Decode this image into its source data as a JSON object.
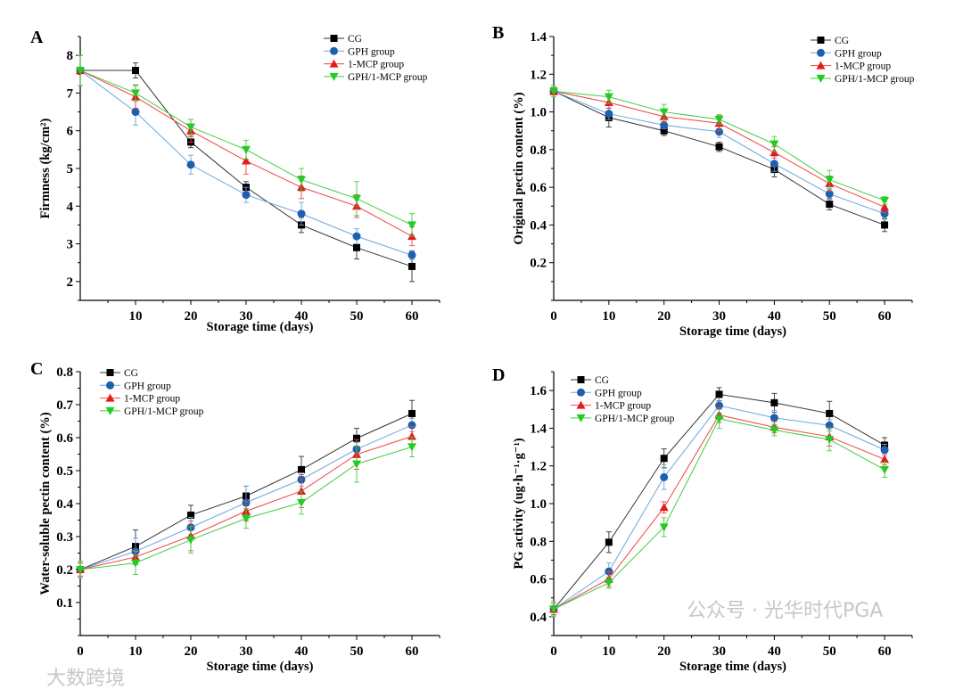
{
  "series_styles": [
    {
      "name": "CG",
      "marker": "square",
      "color": "#000000",
      "line": "#333333"
    },
    {
      "name": "GPH group",
      "marker": "circle",
      "color": "#1f5fb0",
      "line": "#6aa6de"
    },
    {
      "name": "1-MCP group",
      "marker": "triangle-up",
      "color": "#e8191b",
      "line": "#ee4444"
    },
    {
      "name": "GPH/1-MCP group",
      "marker": "triangle-down",
      "color": "#22cc22",
      "line": "#44cc44"
    }
  ],
  "chart_data": [
    {
      "panel": "A",
      "type": "line",
      "title": "",
      "xlabel": "Storage time (days)",
      "ylabel": "Firmness (kg/cm²)",
      "x": [
        0,
        10,
        20,
        30,
        40,
        50,
        60
      ],
      "xlim": [
        0,
        65
      ],
      "ylim": [
        1.5,
        8.5
      ],
      "xticks": [
        "10",
        "20",
        "30",
        "40",
        "50",
        "60"
      ],
      "yticks": [
        "2",
        "3",
        "4",
        "5",
        "6",
        "7",
        "8"
      ],
      "legend": "top-right",
      "grid": false,
      "series": [
        {
          "name": "CG",
          "values": [
            7.6,
            7.6,
            5.7,
            4.5,
            3.5,
            2.9,
            2.4
          ],
          "errors": [
            0.4,
            0.2,
            0.15,
            0.15,
            0.2,
            0.3,
            0.4
          ]
        },
        {
          "name": "GPH group",
          "values": [
            7.6,
            6.5,
            5.1,
            4.3,
            3.8,
            3.2,
            2.7
          ],
          "errors": [
            0.4,
            0.35,
            0.25,
            0.2,
            0.3,
            0.2,
            0.12
          ]
        },
        {
          "name": "1-MCP group",
          "values": [
            7.6,
            6.9,
            6.0,
            5.2,
            4.5,
            4.0,
            3.2
          ],
          "errors": [
            0.4,
            0.3,
            0.3,
            0.35,
            0.3,
            0.3,
            0.25
          ]
        },
        {
          "name": "GPH/1-MCP group",
          "values": [
            7.6,
            7.0,
            6.1,
            5.5,
            4.7,
            4.2,
            3.5
          ],
          "errors": [
            0.4,
            0.22,
            0.2,
            0.25,
            0.3,
            0.45,
            0.3
          ]
        }
      ]
    },
    {
      "panel": "B",
      "type": "line",
      "title": "",
      "xlabel": "Storage time (days)",
      "ylabel": "Original pectin content (%)",
      "x": [
        0,
        10,
        20,
        30,
        40,
        50,
        60
      ],
      "xlim": [
        0,
        65
      ],
      "ylim": [
        0,
        1.4
      ],
      "xticks": [
        "0",
        "10",
        "20",
        "30",
        "40",
        "50",
        "60"
      ],
      "yticks": [
        "0.2",
        "0.4",
        "0.6",
        "0.8",
        "1.0",
        "1.2",
        "1.4"
      ],
      "legend": "top-right",
      "grid": false,
      "series": [
        {
          "name": "CG",
          "values": [
            1.11,
            0.97,
            0.9,
            0.815,
            0.695,
            0.51,
            0.4
          ],
          "errors": [
            0.02,
            0.05,
            0.025,
            0.025,
            0.04,
            0.03,
            0.035
          ]
        },
        {
          "name": "GPH group",
          "values": [
            1.11,
            0.99,
            0.93,
            0.895,
            0.725,
            0.565,
            0.46
          ],
          "errors": [
            0.02,
            0.03,
            0.02,
            0.03,
            0.04,
            0.03,
            0.03
          ]
        },
        {
          "name": "1-MCP group",
          "values": [
            1.11,
            1.05,
            0.975,
            0.94,
            0.785,
            0.62,
            0.495
          ],
          "errors": [
            0.02,
            0.03,
            0.03,
            0.04,
            0.03,
            0.04,
            0.03
          ]
        },
        {
          "name": "GPH/1-MCP group",
          "values": [
            1.11,
            1.08,
            1.0,
            0.96,
            0.83,
            0.64,
            0.53
          ],
          "errors": [
            0.03,
            0.035,
            0.04,
            0.025,
            0.04,
            0.05,
            0.02
          ]
        }
      ]
    },
    {
      "panel": "C",
      "type": "line",
      "title": "",
      "xlabel": "Storage time (days)",
      "ylabel": "Water-soluble pectin content (%)",
      "x": [
        0,
        10,
        20,
        30,
        40,
        50,
        60
      ],
      "xlim": [
        0,
        65
      ],
      "ylim": [
        0,
        0.8
      ],
      "xticks": [
        "0",
        "10",
        "20",
        "30",
        "40",
        "50",
        "60"
      ],
      "yticks": [
        "0.1",
        "0.2",
        "0.3",
        "0.4",
        "0.5",
        "0.6",
        "0.7",
        "0.8"
      ],
      "legend": "top-left",
      "grid": false,
      "series": [
        {
          "name": "CG",
          "values": [
            0.2,
            0.27,
            0.365,
            0.423,
            0.503,
            0.598,
            0.673
          ],
          "errors": [
            0.02,
            0.05,
            0.03,
            0.03,
            0.04,
            0.03,
            0.04
          ]
        },
        {
          "name": "GPH group",
          "values": [
            0.2,
            0.255,
            0.328,
            0.403,
            0.473,
            0.565,
            0.638
          ],
          "errors": [
            0.02,
            0.04,
            0.03,
            0.05,
            0.02,
            0.02,
            0.02
          ]
        },
        {
          "name": "1-MCP group",
          "values": [
            0.2,
            0.238,
            0.302,
            0.377,
            0.438,
            0.549,
            0.604
          ],
          "errors": [
            0.02,
            0.02,
            0.045,
            0.03,
            0.05,
            0.045,
            0.03
          ]
        },
        {
          "name": "GPH/1-MCP group",
          "values": [
            0.2,
            0.22,
            0.29,
            0.355,
            0.403,
            0.52,
            0.572
          ],
          "errors": [
            0.025,
            0.035,
            0.04,
            0.03,
            0.035,
            0.055,
            0.03
          ]
        }
      ]
    },
    {
      "panel": "D",
      "type": "line",
      "title": "",
      "xlabel": "Storage time (days)",
      "ylabel": "PG activity (ug·h⁻¹·g⁻¹)",
      "x": [
        0,
        10,
        20,
        30,
        40,
        50,
        60
      ],
      "xlim": [
        0,
        65
      ],
      "ylim": [
        0.3,
        1.7
      ],
      "xticks": [
        "0",
        "10",
        "20",
        "30",
        "40",
        "50",
        "60"
      ],
      "yticks": [
        "0.4",
        "0.6",
        "0.8",
        "1.0",
        "1.2",
        "1.4",
        "1.6"
      ],
      "legend": "top-left",
      "grid": false,
      "series": [
        {
          "name": "CG",
          "values": [
            0.44,
            0.795,
            1.24,
            1.58,
            1.535,
            1.478,
            1.31
          ],
          "errors": [
            0.03,
            0.055,
            0.05,
            0.035,
            0.05,
            0.065,
            0.04
          ]
        },
        {
          "name": "GPH group",
          "values": [
            0.44,
            0.64,
            1.14,
            1.52,
            1.455,
            1.415,
            1.285
          ],
          "errors": [
            0.03,
            0.045,
            0.065,
            0.04,
            0.04,
            0.03,
            0.03
          ]
        },
        {
          "name": "1-MCP group",
          "values": [
            0.44,
            0.6,
            0.98,
            1.47,
            1.405,
            1.355,
            1.235
          ],
          "errors": [
            0.03,
            0.04,
            0.03,
            0.04,
            0.03,
            0.05,
            0.03
          ]
        },
        {
          "name": "GPH/1-MCP group",
          "values": [
            0.44,
            0.58,
            0.875,
            1.45,
            1.39,
            1.34,
            1.18
          ],
          "errors": [
            0.04,
            0.03,
            0.05,
            0.05,
            0.03,
            0.06,
            0.04
          ]
        }
      ]
    }
  ],
  "watermarks": {
    "left": "大数跨境",
    "right": "公众号 · 光华时代PGA"
  }
}
